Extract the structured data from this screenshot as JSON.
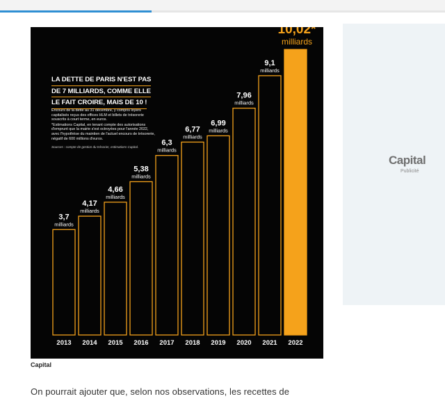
{
  "header": {
    "progress": 0.34
  },
  "figure": {
    "headline_lines": [
      "LA DETTE DE PARIS N'EST PAS",
      "DE 7 MILLIARDS, COMME ELLE",
      "LE FAIT CROIRE, MAIS DE 10 !"
    ],
    "description": "Encours de la dette au 31 décembre, y compris loyers capitalisés reçus des offices HLM et billets de trésorerie souscrits à court terme, en euros.",
    "footnote": "*Estimations Capital, en tenant compte des autorisations d'emprunt que la mairie s'est octroyées pour l'année 2022, avec l'hypothèse du maintien de l'actuel encours de trésorerie, négatif de 600 millions d'euros.",
    "sources": "Sources : compte de gestion du trésorier, estimations Capital.",
    "caption": "Capital"
  },
  "chart_data": {
    "type": "bar",
    "categories": [
      "2013",
      "2014",
      "2015",
      "2016",
      "2017",
      "2018",
      "2019",
      "2020",
      "2021",
      "2022"
    ],
    "values": [
      3.7,
      4.17,
      4.66,
      5.38,
      6.3,
      6.77,
      6.99,
      7.96,
      9.1,
      10.02
    ],
    "value_labels": [
      "3,7",
      "4,17",
      "4,66",
      "5,38",
      "6,3",
      "6,77",
      "6,99",
      "7,96",
      "9,1",
      "10,02*"
    ],
    "unit_label": "milliards",
    "title": "LA DETTE DE PARIS N'EST PAS DE 7 MILLIARDS, COMME ELLE LE FAIT CROIRE, MAIS DE 10 !",
    "xlabel": "",
    "ylabel": "",
    "highlight_index": 9,
    "colors": {
      "background": "#050505",
      "bar_outline": "#f5a21b",
      "highlight_fill": "#f5a21b",
      "highlight_text": "#f5a21b",
      "text": "#ffffff"
    },
    "grid": false,
    "legend": "none"
  },
  "article": {
    "paragraph": "On pourrait ajouter que, selon nos observations, les recettes de"
  },
  "ad": {
    "logo": "Capital",
    "label": "Publicité"
  }
}
